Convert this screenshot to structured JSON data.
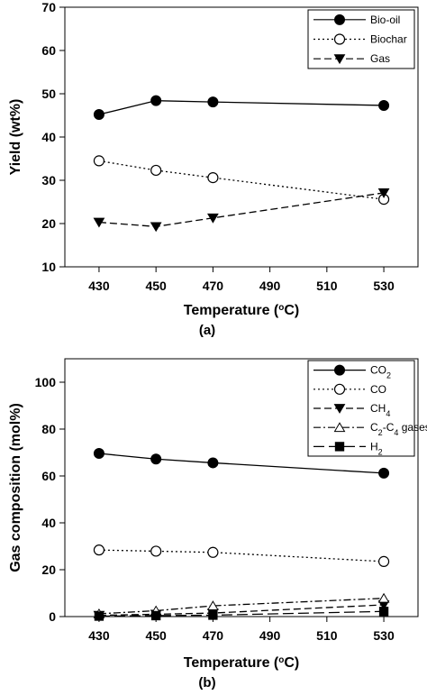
{
  "chart_data": [
    {
      "type": "line",
      "panel_label": "(a)",
      "xlabel": "Temperature (°C)",
      "ylabel": "Yield (wt%)",
      "x": [
        430,
        450,
        470,
        530
      ],
      "xticks": [
        "430",
        "450",
        "470",
        "490",
        "510",
        "530"
      ],
      "xlim": [
        418,
        542
      ],
      "ylim": [
        10,
        70
      ],
      "yticks": [
        "10",
        "20",
        "30",
        "40",
        "50",
        "60",
        "70"
      ],
      "legend_position": "top-right",
      "grid": false,
      "series": [
        {
          "name": "Bio-oil",
          "values": [
            45.2,
            48.4,
            48.1,
            47.3
          ],
          "marker": "filled-circle",
          "line": "solid"
        },
        {
          "name": "Biochar",
          "values": [
            34.5,
            32.3,
            30.6,
            25.6
          ],
          "marker": "open-circle",
          "line": "dotted"
        },
        {
          "name": "Gas",
          "values": [
            20.3,
            19.3,
            21.3,
            27.1
          ],
          "marker": "filled-triangle-down",
          "line": "dashed"
        }
      ]
    },
    {
      "type": "line",
      "panel_label": "(b)",
      "xlabel": "Temperature (°C)",
      "ylabel": "Gas composition (mol%)",
      "x": [
        430,
        450,
        470,
        530
      ],
      "xticks": [
        "430",
        "450",
        "470",
        "490",
        "510",
        "530"
      ],
      "xlim": [
        418,
        542
      ],
      "ylim": [
        0,
        110
      ],
      "yticks": [
        "0",
        "20",
        "40",
        "60",
        "80",
        "100"
      ],
      "legend_position": "top-right",
      "grid": false,
      "series": [
        {
          "name": "CO2",
          "values": [
            69.6,
            67.2,
            65.6,
            61.2
          ],
          "marker": "filled-circle",
          "line": "solid"
        },
        {
          "name": "CO",
          "values": [
            28.4,
            27.9,
            27.4,
            23.5
          ],
          "marker": "open-circle",
          "line": "dotted"
        },
        {
          "name": "CH4",
          "values": [
            0.5,
            1.0,
            1.5,
            5.0
          ],
          "marker": "filled-triangle-down",
          "line": "dashed"
        },
        {
          "name": "C2-C4 gases",
          "values": [
            1.2,
            2.5,
            4.6,
            7.8
          ],
          "marker": "open-triangle-up",
          "line": "dash-dot"
        },
        {
          "name": "H2",
          "values": [
            0.2,
            0.4,
            0.6,
            2.2
          ],
          "marker": "filled-square",
          "line": "long-dash"
        }
      ]
    }
  ]
}
